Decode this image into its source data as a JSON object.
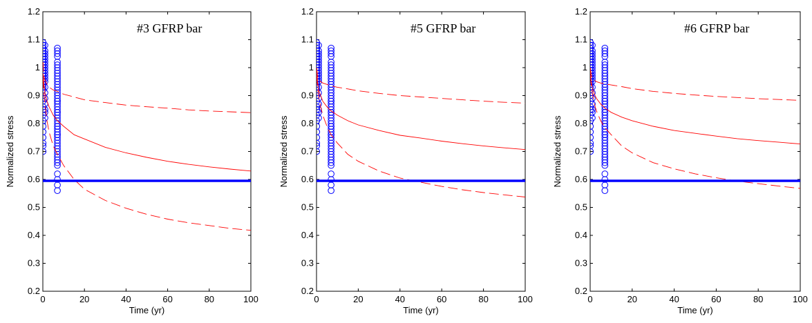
{
  "chart_data": [
    {
      "type": "scatter",
      "title": "#3 GFRP bar",
      "xlabel": "Time (yr)",
      "ylabel": "Normalized stress",
      "xlim": [
        0,
        100
      ],
      "ylim": [
        0.2,
        1.2
      ],
      "xticks": [
        "0",
        "20",
        "40",
        "60",
        "80",
        "100"
      ],
      "yticks": [
        "0.2",
        "0.3",
        "0.4",
        "0.5",
        "0.6",
        "0.7",
        "0.8",
        "0.9",
        "1",
        "1.1",
        "1.2"
      ],
      "colors": {
        "markers": "#0000ff",
        "curves": "#ff0000",
        "threshold": "#0000ff"
      },
      "series": [
        {
          "style": "circle-markers",
          "x": [
            0.1,
            0.1,
            0.1,
            0.1,
            0.1,
            0.1,
            0.1,
            0.1,
            0.1,
            0.1,
            0.1,
            0.1,
            0.1,
            0.1,
            0.1,
            0.1,
            0.1,
            0.1,
            0.1,
            0.1,
            0.1,
            0.1,
            0.1,
            0.1,
            0.1,
            0.1,
            0.1,
            0.1,
            0.1,
            0.1,
            1.0,
            1.0,
            1.0,
            1.0,
            1.0,
            1.0,
            1.0,
            1.0,
            1.0,
            1.0,
            1.0,
            1.0,
            1.0,
            1.0,
            1.0,
            1.0,
            1.0,
            1.0,
            1.0,
            1.0,
            7.0,
            7.0,
            7.0,
            7.0,
            7.0,
            7.0,
            7.0,
            7.0,
            7.0,
            7.0,
            7.0,
            7.0,
            7.0,
            7.0,
            7.0,
            7.0,
            7.0,
            7.0,
            7.0,
            7.0,
            7.0,
            7.0,
            7.0,
            7.0,
            7.0,
            7.0,
            7.0,
            7.0,
            7.0,
            7.0,
            7.0,
            7.0,
            7.0,
            7.0,
            7.0,
            7.0,
            7.0,
            7.0,
            7.0,
            7.0,
            7.0,
            7.0,
            7.0,
            7.0,
            7.0,
            7.0,
            7.0,
            7.0,
            7.0,
            7.0
          ],
          "y": [
            1.09,
            1.08,
            1.07,
            1.06,
            1.05,
            1.04,
            1.03,
            1.02,
            1.01,
            1.0,
            0.99,
            0.98,
            0.97,
            0.96,
            0.95,
            0.94,
            0.93,
            0.92,
            0.9,
            0.88,
            0.86,
            0.85,
            0.83,
            0.81,
            0.79,
            0.77,
            0.75,
            0.73,
            0.72,
            0.7,
            1.08,
            1.06,
            1.05,
            1.04,
            1.03,
            1.02,
            1.01,
            1.0,
            0.99,
            0.98,
            0.97,
            0.96,
            0.95,
            0.93,
            0.91,
            0.89,
            0.87,
            0.85,
            0.84,
            0.82,
            1.07,
            1.06,
            1.05,
            1.04,
            1.02,
            1.01,
            1.0,
            0.99,
            0.98,
            0.97,
            0.96,
            0.95,
            0.94,
            0.93,
            0.92,
            0.91,
            0.9,
            0.89,
            0.88,
            0.87,
            0.86,
            0.85,
            0.84,
            0.83,
            0.82,
            0.81,
            0.8,
            0.79,
            0.78,
            0.77,
            0.76,
            0.75,
            0.74,
            0.73,
            0.72,
            0.71,
            0.7,
            0.69,
            0.68,
            0.67,
            0.66,
            0.65,
            0.88,
            0.84,
            0.79,
            0.76,
            0.62,
            0.6,
            0.58,
            0.56
          ]
        },
        {
          "style": "solid",
          "x": [
            0.1,
            0.5,
            1,
            2,
            3,
            5,
            7,
            10,
            15,
            20,
            30,
            40,
            50,
            60,
            70,
            80,
            90,
            100
          ],
          "y": [
            0.98,
            0.94,
            0.91,
            0.88,
            0.86,
            0.83,
            0.81,
            0.79,
            0.76,
            0.745,
            0.715,
            0.695,
            0.679,
            0.665,
            0.654,
            0.645,
            0.637,
            0.63
          ]
        },
        {
          "style": "dashed",
          "x": [
            0.1,
            0.5,
            1,
            2,
            3,
            5,
            7,
            10,
            15,
            20,
            30,
            40,
            50,
            60,
            70,
            80,
            90,
            100
          ],
          "y": [
            1.02,
            0.97,
            0.955,
            0.94,
            0.93,
            0.92,
            0.915,
            0.905,
            0.895,
            0.885,
            0.875,
            0.866,
            0.86,
            0.855,
            0.849,
            0.845,
            0.842,
            0.839
          ]
        },
        {
          "style": "dashed",
          "x": [
            0.1,
            0.5,
            1,
            2,
            3,
            5,
            7,
            10,
            15,
            20,
            30,
            40,
            50,
            60,
            70,
            80,
            90,
            100
          ],
          "y": [
            0.96,
            0.91,
            0.87,
            0.81,
            0.77,
            0.72,
            0.69,
            0.65,
            0.6,
            0.565,
            0.525,
            0.497,
            0.475,
            0.458,
            0.445,
            0.435,
            0.425,
            0.418
          ]
        },
        {
          "style": "thick",
          "x": [
            0,
            100
          ],
          "y": [
            0.595,
            0.595
          ]
        }
      ]
    },
    {
      "type": "scatter",
      "title": "#5 GFRP bar",
      "xlabel": "Time (yr)",
      "ylabel": "Normalized stress",
      "xlim": [
        0,
        100
      ],
      "ylim": [
        0.2,
        1.2
      ],
      "xticks": [
        "0",
        "20",
        "40",
        "60",
        "80",
        "100"
      ],
      "yticks": [
        "0.2",
        "0.3",
        "0.4",
        "0.5",
        "0.6",
        "0.7",
        "0.8",
        "0.9",
        "1",
        "1.1",
        "1.2"
      ],
      "colors": {
        "markers": "#0000ff",
        "curves": "#ff0000",
        "threshold": "#0000ff"
      },
      "series": [
        {
          "style": "circle-markers",
          "x": [
            0.1,
            0.1,
            0.1,
            0.1,
            0.1,
            0.1,
            0.1,
            0.1,
            0.1,
            0.1,
            0.1,
            0.1,
            0.1,
            0.1,
            0.1,
            0.1,
            0.1,
            0.1,
            0.1,
            0.1,
            0.1,
            0.1,
            0.1,
            0.1,
            0.1,
            0.1,
            0.1,
            0.1,
            0.1,
            0.1,
            1.0,
            1.0,
            1.0,
            1.0,
            1.0,
            1.0,
            1.0,
            1.0,
            1.0,
            1.0,
            1.0,
            1.0,
            1.0,
            1.0,
            1.0,
            1.0,
            1.0,
            1.0,
            1.0,
            1.0,
            7.0,
            7.0,
            7.0,
            7.0,
            7.0,
            7.0,
            7.0,
            7.0,
            7.0,
            7.0,
            7.0,
            7.0,
            7.0,
            7.0,
            7.0,
            7.0,
            7.0,
            7.0,
            7.0,
            7.0,
            7.0,
            7.0,
            7.0,
            7.0,
            7.0,
            7.0,
            7.0,
            7.0,
            7.0,
            7.0,
            7.0,
            7.0,
            7.0,
            7.0,
            7.0,
            7.0,
            7.0,
            7.0,
            7.0,
            7.0,
            7.0,
            7.0,
            7.0,
            7.0,
            7.0,
            7.0,
            7.0,
            7.0,
            7.0,
            7.0
          ],
          "y": [
            1.09,
            1.08,
            1.07,
            1.06,
            1.05,
            1.04,
            1.03,
            1.02,
            1.01,
            1.0,
            0.99,
            0.98,
            0.97,
            0.96,
            0.95,
            0.94,
            0.93,
            0.92,
            0.9,
            0.88,
            0.86,
            0.85,
            0.83,
            0.81,
            0.79,
            0.77,
            0.75,
            0.73,
            0.72,
            0.7,
            1.08,
            1.06,
            1.05,
            1.04,
            1.03,
            1.02,
            1.01,
            1.0,
            0.99,
            0.98,
            0.97,
            0.96,
            0.95,
            0.93,
            0.91,
            0.89,
            0.87,
            0.85,
            0.84,
            0.82,
            1.07,
            1.06,
            1.05,
            1.04,
            1.02,
            1.01,
            1.0,
            0.99,
            0.98,
            0.97,
            0.96,
            0.95,
            0.94,
            0.93,
            0.92,
            0.91,
            0.9,
            0.89,
            0.88,
            0.87,
            0.86,
            0.85,
            0.84,
            0.83,
            0.82,
            0.81,
            0.8,
            0.79,
            0.78,
            0.77,
            0.76,
            0.75,
            0.74,
            0.73,
            0.72,
            0.71,
            0.7,
            0.69,
            0.68,
            0.67,
            0.66,
            0.65,
            0.88,
            0.84,
            0.79,
            0.76,
            0.62,
            0.6,
            0.58,
            0.56
          ]
        },
        {
          "style": "solid",
          "x": [
            0.1,
            0.5,
            1,
            2,
            3,
            5,
            7,
            10,
            15,
            20,
            30,
            40,
            50,
            60,
            70,
            80,
            90,
            100
          ],
          "y": [
            0.99,
            0.95,
            0.92,
            0.9,
            0.88,
            0.86,
            0.845,
            0.83,
            0.81,
            0.795,
            0.775,
            0.758,
            0.748,
            0.737,
            0.728,
            0.72,
            0.713,
            0.707
          ]
        },
        {
          "style": "dashed",
          "x": [
            0.1,
            0.5,
            1,
            2,
            3,
            5,
            7,
            10,
            15,
            20,
            30,
            40,
            50,
            60,
            70,
            80,
            90,
            100
          ],
          "y": [
            1.0,
            0.97,
            0.96,
            0.95,
            0.945,
            0.94,
            0.935,
            0.93,
            0.924,
            0.917,
            0.908,
            0.9,
            0.895,
            0.89,
            0.885,
            0.88,
            0.876,
            0.873
          ]
        },
        {
          "style": "dashed",
          "x": [
            0.1,
            0.5,
            1,
            2,
            3,
            5,
            7,
            10,
            15,
            20,
            30,
            40,
            50,
            60,
            70,
            80,
            90,
            100
          ],
          "y": [
            0.97,
            0.93,
            0.9,
            0.86,
            0.83,
            0.79,
            0.76,
            0.73,
            0.69,
            0.665,
            0.63,
            0.605,
            0.59,
            0.575,
            0.563,
            0.553,
            0.545,
            0.537
          ]
        },
        {
          "style": "thick",
          "x": [
            0,
            100
          ],
          "y": [
            0.595,
            0.595
          ]
        }
      ]
    },
    {
      "type": "scatter",
      "title": "#6 GFRP bar",
      "xlabel": "Time (yr)",
      "ylabel": "Normalized stress",
      "xlim": [
        0,
        100
      ],
      "ylim": [
        0.2,
        1.2
      ],
      "xticks": [
        "0",
        "20",
        "40",
        "60",
        "80",
        "100"
      ],
      "yticks": [
        "0.2",
        "0.3",
        "0.4",
        "0.5",
        "0.6",
        "0.7",
        "0.8",
        "0.9",
        "1",
        "1.1",
        "1.2"
      ],
      "colors": {
        "markers": "#0000ff",
        "curves": "#ff0000",
        "threshold": "#0000ff"
      },
      "series": [
        {
          "style": "circle-markers",
          "x": [
            0.1,
            0.1,
            0.1,
            0.1,
            0.1,
            0.1,
            0.1,
            0.1,
            0.1,
            0.1,
            0.1,
            0.1,
            0.1,
            0.1,
            0.1,
            0.1,
            0.1,
            0.1,
            0.1,
            0.1,
            0.1,
            0.1,
            0.1,
            0.1,
            0.1,
            0.1,
            0.1,
            0.1,
            0.1,
            0.1,
            1.0,
            1.0,
            1.0,
            1.0,
            1.0,
            1.0,
            1.0,
            1.0,
            1.0,
            1.0,
            1.0,
            1.0,
            1.0,
            1.0,
            1.0,
            1.0,
            1.0,
            1.0,
            1.0,
            1.0,
            7.0,
            7.0,
            7.0,
            7.0,
            7.0,
            7.0,
            7.0,
            7.0,
            7.0,
            7.0,
            7.0,
            7.0,
            7.0,
            7.0,
            7.0,
            7.0,
            7.0,
            7.0,
            7.0,
            7.0,
            7.0,
            7.0,
            7.0,
            7.0,
            7.0,
            7.0,
            7.0,
            7.0,
            7.0,
            7.0,
            7.0,
            7.0,
            7.0,
            7.0,
            7.0,
            7.0,
            7.0,
            7.0,
            7.0,
            7.0,
            7.0,
            7.0,
            7.0,
            7.0,
            7.0,
            7.0,
            7.0,
            7.0,
            7.0,
            7.0
          ],
          "y": [
            1.09,
            1.08,
            1.07,
            1.06,
            1.05,
            1.04,
            1.03,
            1.02,
            1.01,
            1.0,
            0.99,
            0.98,
            0.97,
            0.96,
            0.95,
            0.94,
            0.93,
            0.92,
            0.9,
            0.88,
            0.86,
            0.85,
            0.83,
            0.81,
            0.79,
            0.77,
            0.75,
            0.73,
            0.72,
            0.7,
            1.08,
            1.06,
            1.05,
            1.04,
            1.03,
            1.02,
            1.01,
            1.0,
            0.99,
            0.98,
            0.97,
            0.96,
            0.95,
            0.93,
            0.91,
            0.89,
            0.87,
            0.85,
            0.84,
            0.82,
            1.07,
            1.06,
            1.05,
            1.04,
            1.02,
            1.01,
            1.0,
            0.99,
            0.98,
            0.97,
            0.96,
            0.95,
            0.94,
            0.93,
            0.92,
            0.91,
            0.9,
            0.89,
            0.88,
            0.87,
            0.86,
            0.85,
            0.84,
            0.83,
            0.82,
            0.81,
            0.8,
            0.79,
            0.78,
            0.77,
            0.76,
            0.75,
            0.74,
            0.73,
            0.72,
            0.71,
            0.7,
            0.69,
            0.68,
            0.67,
            0.66,
            0.65,
            0.88,
            0.84,
            0.79,
            0.76,
            0.62,
            0.6,
            0.58,
            0.56
          ]
        },
        {
          "style": "solid",
          "x": [
            0.1,
            0.5,
            1,
            2,
            3,
            5,
            7,
            10,
            15,
            20,
            30,
            40,
            50,
            60,
            70,
            80,
            90,
            100
          ],
          "y": [
            0.99,
            0.95,
            0.93,
            0.905,
            0.89,
            0.87,
            0.855,
            0.84,
            0.823,
            0.81,
            0.79,
            0.775,
            0.765,
            0.755,
            0.746,
            0.739,
            0.733,
            0.727
          ]
        },
        {
          "style": "dashed",
          "x": [
            0.1,
            0.5,
            1,
            2,
            3,
            5,
            7,
            10,
            15,
            20,
            30,
            40,
            50,
            60,
            70,
            80,
            90,
            100
          ],
          "y": [
            1.0,
            0.975,
            0.965,
            0.955,
            0.95,
            0.945,
            0.942,
            0.938,
            0.932,
            0.925,
            0.915,
            0.908,
            0.902,
            0.897,
            0.893,
            0.889,
            0.886,
            0.883
          ]
        },
        {
          "style": "dashed",
          "x": [
            0.1,
            0.5,
            1,
            2,
            3,
            5,
            7,
            10,
            15,
            20,
            30,
            40,
            50,
            60,
            70,
            80,
            90,
            100
          ],
          "y": [
            0.97,
            0.94,
            0.91,
            0.87,
            0.845,
            0.81,
            0.785,
            0.76,
            0.72,
            0.695,
            0.66,
            0.638,
            0.62,
            0.606,
            0.594,
            0.585,
            0.576,
            0.568
          ]
        },
        {
          "style": "thick",
          "x": [
            0,
            100
          ],
          "y": [
            0.595,
            0.595
          ]
        }
      ]
    }
  ]
}
